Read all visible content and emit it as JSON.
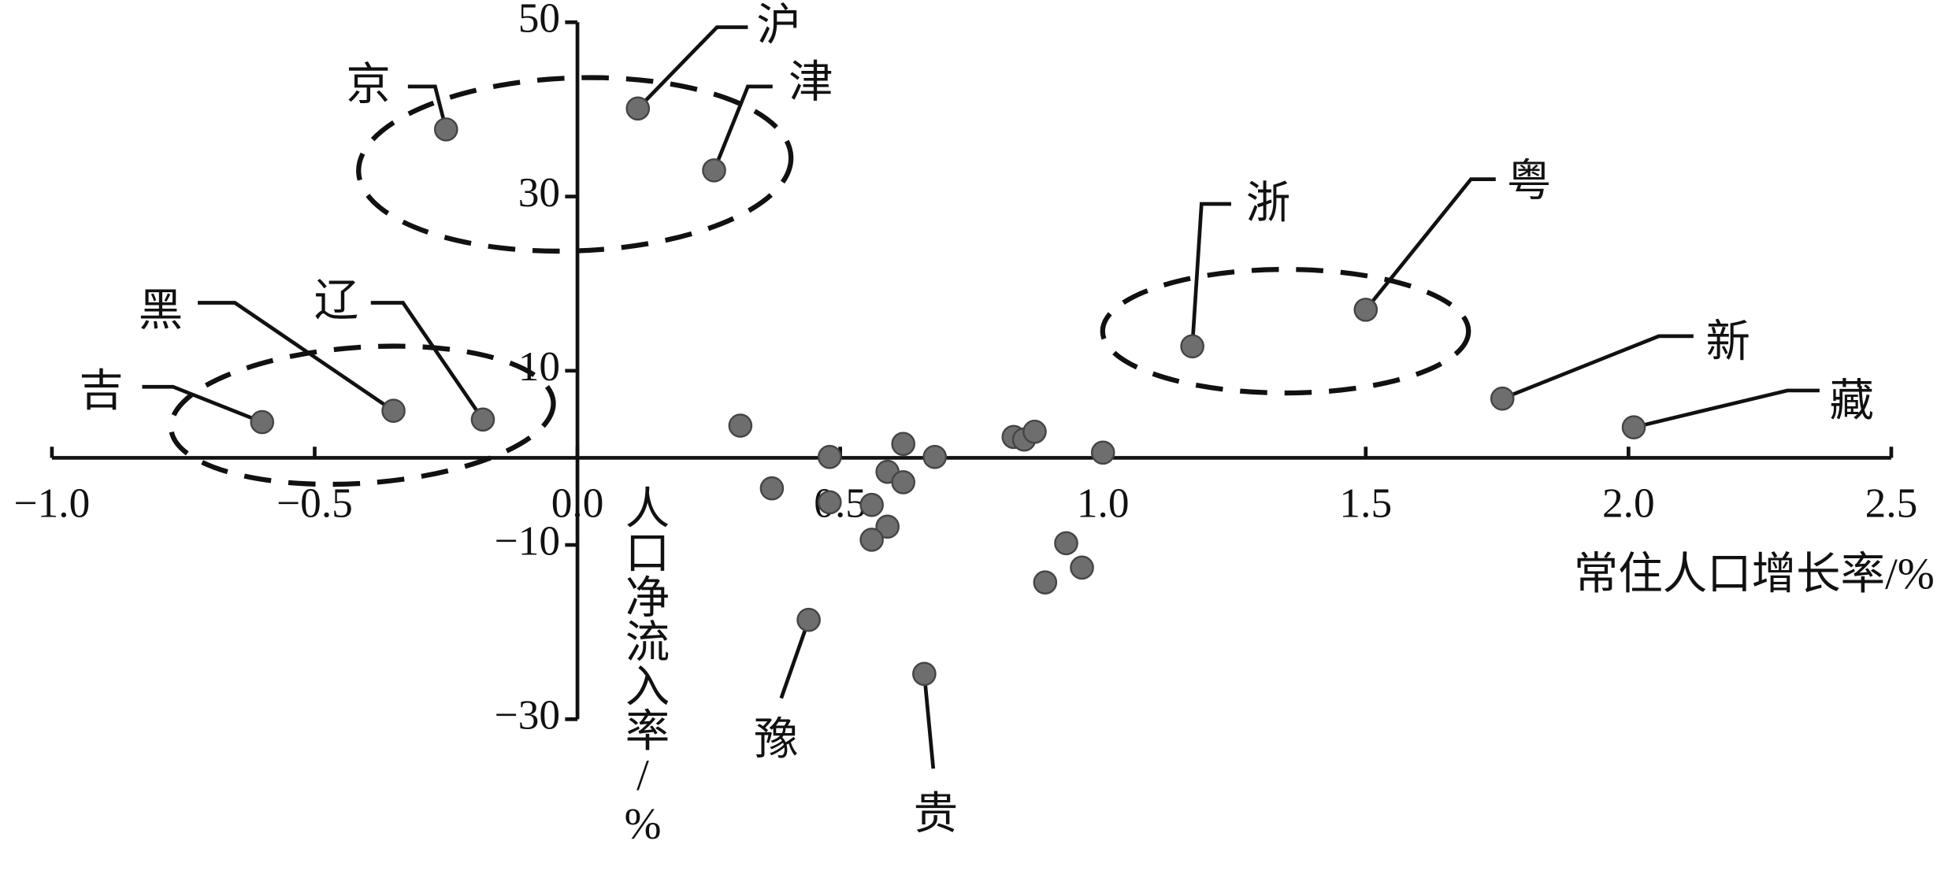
{
  "chart_data": {
    "type": "scatter",
    "x_label": "常住人口增长率/%",
    "y_label": "人口净流入率/%",
    "xlim": [
      -1.0,
      2.5
    ],
    "ylim": [
      -30,
      50
    ],
    "xticks": [
      {
        "value": -1.0,
        "label": "−1.0"
      },
      {
        "value": -0.5,
        "label": "−0.5"
      },
      {
        "value": 0.0,
        "label": "0.0"
      },
      {
        "value": 0.5,
        "label": "0.5"
      },
      {
        "value": 1.0,
        "label": "1.0"
      },
      {
        "value": 1.5,
        "label": "1.5"
      },
      {
        "value": 2.0,
        "label": "2.0"
      },
      {
        "value": 2.5,
        "label": "2.5"
      }
    ],
    "yticks": [
      50,
      30,
      10,
      {
        "value": -10,
        "label": "−10"
      },
      {
        "value": -30,
        "label": "−30"
      }
    ],
    "color": "#6e6e6e",
    "x": [
      -0.25,
      0.115,
      0.26,
      1.17,
      1.5,
      1.76,
      2.01,
      -0.6,
      -0.35,
      -0.18,
      0.44,
      0.66,
      0.31,
      0.37,
      0.48,
      0.48,
      0.59,
      0.62,
      0.62,
      0.56,
      0.59,
      0.56,
      0.68,
      0.83,
      0.85,
      0.87,
      1.0,
      0.93,
      0.96,
      0.89
    ],
    "y": [
      37.7,
      40.1,
      33.0,
      12.8,
      17.0,
      6.8,
      3.5,
      4.1,
      5.4,
      4.4,
      -18.6,
      -24.8,
      3.7,
      -3.5,
      0.1,
      -5.1,
      -1.6,
      1.6,
      -2.8,
      -5.4,
      -7.9,
      -9.4,
      0.1,
      2.4,
      2.1,
      3.0,
      0.6,
      -9.8,
      -12.6,
      -14.3
    ],
    "point_labels": [
      "京",
      "沪",
      "津",
      "浙",
      "粤",
      "新",
      "藏",
      "吉",
      "黑",
      "辽",
      "豫",
      "贵",
      null,
      null,
      null,
      null,
      null,
      null,
      null,
      null,
      null,
      null,
      null,
      null,
      null,
      null,
      null,
      null,
      null,
      null
    ]
  }
}
